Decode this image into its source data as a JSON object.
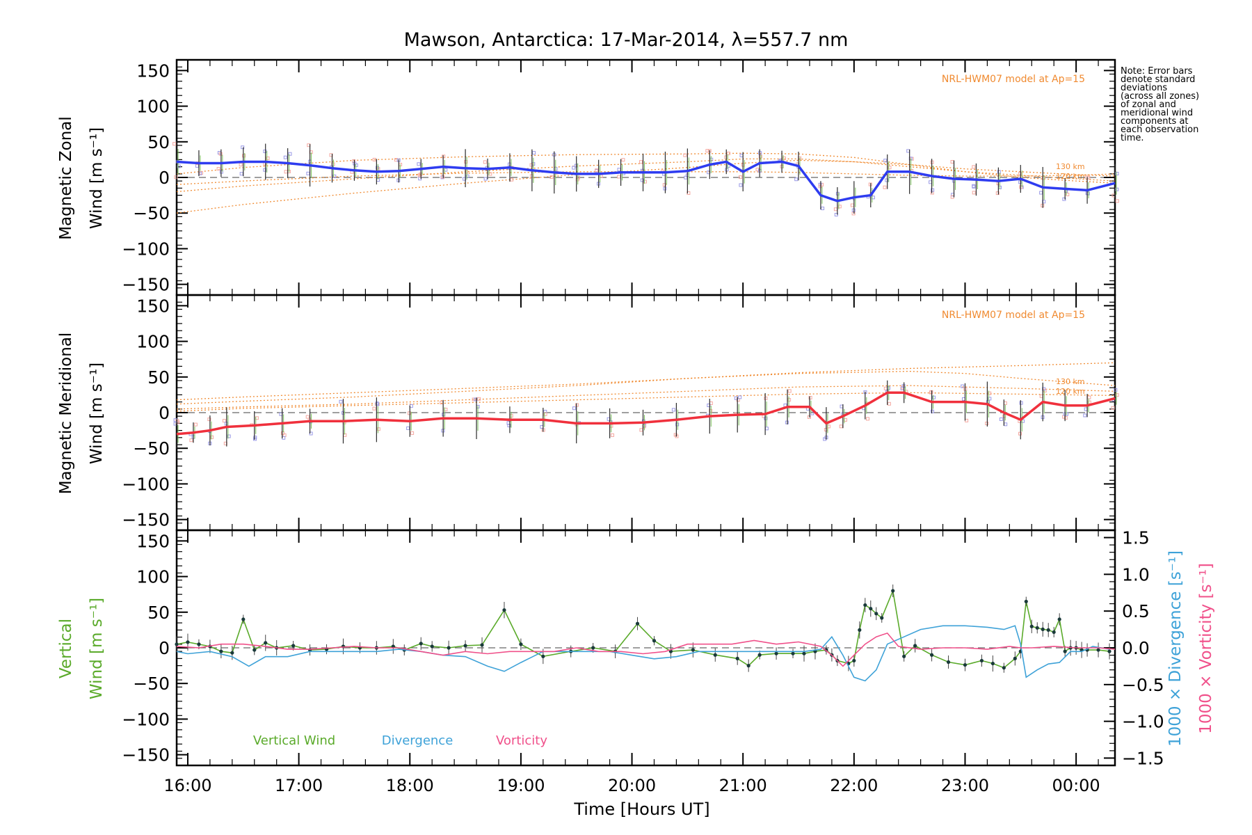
{
  "figure": {
    "title": "Mawson, Antarctica: 17-Mar-2014, λ=557.7 nm",
    "xlabel": "Time [Hours UT]",
    "note": [
      "Note: Error bars",
      "denote standard",
      "deviations",
      "(across all zones)",
      "of zonal and",
      "meridional wind",
      "components at",
      "each observation",
      "time."
    ],
    "model_label": "NRL-HWM07 model at Ap=15",
    "alt_labels": [
      "130 km",
      "120 km"
    ],
    "colors": {
      "zonal": "#2e3cf0",
      "meridional": "#f0303c",
      "vertical": "#5aaa2a",
      "divergence": "#3ea2d8",
      "vorticity": "#f0508a",
      "model": "#f08a30",
      "samples": "#9a9ae6"
    }
  },
  "chart_data": [
    {
      "type": "line",
      "panel": "zonal",
      "ylabel_lines": [
        "Magnetic Zonal",
        "Wind [m s⁻¹]"
      ],
      "ylim": [
        -165,
        165
      ],
      "yticks": [
        -150,
        -100,
        -50,
        0,
        50,
        100,
        150
      ],
      "xlim": [
        15.9,
        24.35
      ],
      "xticks": [
        16,
        17,
        18,
        19,
        20,
        21,
        22,
        23,
        24
      ],
      "xticklabels": [
        "16:00",
        "17:00",
        "18:00",
        "19:00",
        "20:00",
        "21:00",
        "22:00",
        "23:00",
        "00:00"
      ],
      "x": [
        15.9,
        16.1,
        16.3,
        16.5,
        16.7,
        16.9,
        17.1,
        17.3,
        17.5,
        17.7,
        17.9,
        18.1,
        18.3,
        18.5,
        18.7,
        18.9,
        19.1,
        19.3,
        19.5,
        19.7,
        19.9,
        20.1,
        20.3,
        20.5,
        20.7,
        20.85,
        21.0,
        21.15,
        21.35,
        21.5,
        21.7,
        21.85,
        22.0,
        22.15,
        22.3,
        22.5,
        22.7,
        22.9,
        23.1,
        23.3,
        23.5,
        23.7,
        23.9,
        24.1,
        24.35
      ],
      "series": [
        {
          "name": "zonal",
          "values": [
            22,
            20,
            20,
            22,
            22,
            20,
            17,
            13,
            10,
            8,
            9,
            12,
            15,
            13,
            12,
            14,
            10,
            7,
            5,
            5,
            7,
            7,
            7,
            9,
            18,
            22,
            8,
            20,
            22,
            16,
            -25,
            -33,
            -28,
            -25,
            8,
            8,
            2,
            -2,
            -3,
            -5,
            -2,
            -14,
            -16,
            -18,
            -8
          ]
        }
      ],
      "model_lines": [
        {
          "x": [
            15.9,
            16.5,
            17.5,
            18.5,
            19.5,
            20.5,
            21.0,
            21.5,
            22.0,
            22.5,
            23.0,
            23.5,
            24.0,
            24.35
          ],
          "values": [
            5,
            14,
            24,
            29,
            32,
            33,
            34,
            33,
            28,
            18,
            8,
            0,
            -5,
            -8
          ]
        },
        {
          "x": [
            15.9,
            16.5,
            17.5,
            18.5,
            19.5,
            20.5,
            21.0,
            21.5,
            22.0,
            22.5,
            23.0,
            23.5,
            24.0,
            24.35
          ],
          "values": [
            -20,
            -12,
            -2,
            8,
            16,
            22,
            26,
            26,
            22,
            15,
            8,
            3,
            -2,
            -5
          ]
        },
        {
          "x": [
            15.9,
            16.5,
            17.5,
            18.5,
            19.5,
            20.5,
            21.0,
            21.5,
            22.0,
            22.5,
            23.0,
            23.5,
            24.0,
            24.35
          ],
          "values": [
            -50,
            -38,
            -22,
            -8,
            4,
            14,
            20,
            24,
            22,
            18,
            12,
            8,
            4,
            2
          ]
        },
        {
          "x": [
            15.9,
            16.5,
            17.5,
            18.5,
            19.5,
            20.5,
            21.0,
            21.5,
            22.0,
            22.5,
            23.0,
            23.5,
            24.0,
            24.35
          ],
          "values": [
            -10,
            -5,
            2,
            6,
            8,
            8,
            8,
            7,
            5,
            3,
            2,
            2,
            3,
            5
          ]
        }
      ]
    },
    {
      "type": "line",
      "panel": "meridional",
      "ylabel_lines": [
        "Magnetic Meridional",
        "Wind [m s⁻¹]"
      ],
      "ylim": [
        -165,
        165
      ],
      "yticks": [
        -150,
        -100,
        -50,
        0,
        50,
        100,
        150
      ],
      "xlim": [
        15.9,
        24.35
      ],
      "xticks": [
        16,
        17,
        18,
        19,
        20,
        21,
        22,
        23,
        24
      ],
      "xticklabels": [
        "16:00",
        "17:00",
        "18:00",
        "19:00",
        "20:00",
        "21:00",
        "22:00",
        "23:00",
        "00:00"
      ],
      "x": [
        15.9,
        16.05,
        16.2,
        16.35,
        16.6,
        16.85,
        17.1,
        17.4,
        17.7,
        18.0,
        18.3,
        18.6,
        18.9,
        19.2,
        19.5,
        19.8,
        20.1,
        20.4,
        20.7,
        20.95,
        21.2,
        21.4,
        21.6,
        21.75,
        21.9,
        22.1,
        22.3,
        22.45,
        22.7,
        23.0,
        23.2,
        23.35,
        23.5,
        23.7,
        23.9,
        24.1,
        24.35
      ],
      "series": [
        {
          "name": "meridional",
          "values": [
            -30,
            -28,
            -25,
            -20,
            -18,
            -15,
            -12,
            -12,
            -10,
            -12,
            -8,
            -8,
            -10,
            -10,
            -15,
            -15,
            -14,
            -10,
            -5,
            -3,
            -2,
            8,
            8,
            -15,
            -5,
            10,
            28,
            28,
            15,
            15,
            12,
            0,
            -10,
            15,
            10,
            10,
            20
          ]
        }
      ],
      "model_lines": [
        {
          "x": [
            15.9,
            16.5,
            17.5,
            18.5,
            19.5,
            20.5,
            21.5,
            22.5,
            23.5,
            24.35
          ],
          "values": [
            18,
            22,
            28,
            34,
            40,
            48,
            56,
            62,
            66,
            70
          ]
        },
        {
          "x": [
            15.9,
            16.5,
            17.5,
            18.5,
            19.5,
            20.5,
            21.5,
            22.5,
            23.0,
            23.5,
            24.35
          ],
          "values": [
            12,
            16,
            22,
            30,
            38,
            48,
            55,
            58,
            55,
            48,
            38
          ]
        },
        {
          "x": [
            15.9,
            16.5,
            17.5,
            18.5,
            19.5,
            20.5,
            21.5,
            22.5,
            23.5,
            24.35
          ],
          "values": [
            5,
            8,
            12,
            18,
            24,
            30,
            36,
            38,
            34,
            30
          ]
        },
        {
          "x": [
            15.9,
            16.5,
            17.5,
            18.5,
            19.5,
            20.5,
            21.5,
            22.5,
            23.5,
            24.35
          ],
          "values": [
            2,
            6,
            10,
            14,
            18,
            22,
            26,
            28,
            26,
            24
          ]
        }
      ]
    },
    {
      "type": "line",
      "panel": "vertical",
      "ylabel_lines": [
        "Vertical",
        "Wind [m s⁻¹]"
      ],
      "y2label_lines": [
        "1000 × Divergence [s⁻¹]",
        "1000 × Vorticity [s⁻¹]"
      ],
      "ylim": [
        -165,
        165
      ],
      "yticks": [
        -150,
        -100,
        -50,
        0,
        50,
        100,
        150
      ],
      "y2lim": [
        -1.6,
        1.6
      ],
      "y2ticks": [
        -1.5,
        -1.0,
        -0.5,
        0.0,
        0.5,
        1.0,
        1.5
      ],
      "y2ticklabels": [
        "−1.5",
        "−1.0",
        "−0.5",
        "0.0",
        "0.5",
        "1.0",
        "1.5"
      ],
      "xlim": [
        15.9,
        24.35
      ],
      "xticks": [
        16,
        17,
        18,
        19,
        20,
        21,
        22,
        23,
        24
      ],
      "xticklabels": [
        "16:00",
        "17:00",
        "18:00",
        "19:00",
        "20:00",
        "21:00",
        "22:00",
        "23:00",
        "00:00"
      ],
      "legend": [
        "Vertical Wind",
        "Divergence",
        "Vorticity"
      ],
      "series": [
        {
          "name": "Vertical Wind",
          "axis": "left",
          "x": [
            15.9,
            16.0,
            16.1,
            16.2,
            16.3,
            16.4,
            16.5,
            16.6,
            16.7,
            16.8,
            16.95,
            17.1,
            17.25,
            17.4,
            17.55,
            17.7,
            17.85,
            17.95,
            18.1,
            18.2,
            18.35,
            18.5,
            18.65,
            18.85,
            19.0,
            19.2,
            19.45,
            19.65,
            19.85,
            20.05,
            20.2,
            20.35,
            20.55,
            20.75,
            20.95,
            21.05,
            21.15,
            21.3,
            21.45,
            21.55,
            21.65,
            21.75,
            21.8,
            21.85,
            21.95,
            22.0,
            22.05,
            22.1,
            22.15,
            22.2,
            22.25,
            22.35,
            22.45,
            22.55,
            22.7,
            22.85,
            23.0,
            23.15,
            23.25,
            23.35,
            23.45,
            23.5,
            23.55,
            23.6,
            23.65,
            23.7,
            23.75,
            23.8,
            23.85,
            23.9,
            23.95,
            24.0,
            24.05,
            24.1,
            24.2,
            24.3
          ],
          "values": [
            5,
            8,
            5,
            2,
            -5,
            -7,
            40,
            -3,
            7,
            0,
            3,
            -3,
            -2,
            2,
            0,
            0,
            2,
            -3,
            6,
            2,
            0,
            3,
            4,
            53,
            5,
            -12,
            -5,
            0,
            -5,
            34,
            10,
            -5,
            -3,
            -10,
            -15,
            -25,
            -10,
            -8,
            -8,
            -8,
            -5,
            -3,
            -10,
            -18,
            -22,
            -18,
            25,
            60,
            55,
            48,
            42,
            80,
            -12,
            3,
            -10,
            -20,
            -24,
            -18,
            -22,
            -28,
            -15,
            -5,
            65,
            30,
            28,
            26,
            25,
            22,
            40,
            -5,
            0,
            0,
            -3,
            -3,
            -3,
            -5
          ]
        },
        {
          "name": "Divergence",
          "axis": "right",
          "x": [
            15.9,
            16.0,
            16.2,
            16.4,
            16.55,
            16.7,
            16.9,
            17.1,
            17.3,
            17.5,
            17.7,
            17.9,
            18.1,
            18.3,
            18.5,
            18.7,
            18.85,
            19.0,
            19.2,
            19.4,
            19.6,
            19.8,
            20.0,
            20.2,
            20.4,
            20.6,
            20.8,
            21.0,
            21.2,
            21.4,
            21.55,
            21.7,
            21.8,
            21.9,
            22.0,
            22.1,
            22.2,
            22.3,
            22.45,
            22.6,
            22.8,
            23.0,
            23.2,
            23.35,
            23.45,
            23.5,
            23.55,
            23.65,
            23.75,
            23.85,
            23.95,
            24.05,
            24.15,
            24.3
          ],
          "values": [
            -0.05,
            -0.08,
            -0.05,
            -0.12,
            -0.25,
            -0.12,
            -0.12,
            -0.05,
            -0.05,
            -0.05,
            -0.05,
            -0.02,
            -0.05,
            -0.1,
            -0.12,
            -0.25,
            -0.32,
            -0.2,
            -0.05,
            -0.05,
            -0.05,
            -0.05,
            -0.1,
            -0.15,
            -0.12,
            -0.05,
            -0.05,
            -0.05,
            -0.05,
            -0.05,
            -0.05,
            -0.02,
            0.15,
            -0.1,
            -0.4,
            -0.45,
            -0.3,
            0.05,
            0.15,
            0.25,
            0.3,
            0.3,
            0.28,
            0.25,
            0.3,
            0.05,
            -0.4,
            -0.3,
            -0.22,
            -0.2,
            -0.05,
            -0.05,
            0.02,
            -0.02
          ]
        },
        {
          "name": "Vorticity",
          "axis": "right",
          "x": [
            15.9,
            16.1,
            16.3,
            16.5,
            16.7,
            16.9,
            17.1,
            17.3,
            17.5,
            17.7,
            17.9,
            18.1,
            18.3,
            18.5,
            18.7,
            18.9,
            19.1,
            19.3,
            19.5,
            19.7,
            19.9,
            20.1,
            20.3,
            20.5,
            20.7,
            20.9,
            21.1,
            21.3,
            21.5,
            21.7,
            21.8,
            21.9,
            22.0,
            22.1,
            22.2,
            22.3,
            22.4,
            22.6,
            22.8,
            23.0,
            23.2,
            23.4,
            23.5,
            23.6,
            23.8,
            24.0,
            24.2,
            24.35
          ],
          "values": [
            0.02,
            0.0,
            0.05,
            0.05,
            0.02,
            -0.02,
            -0.02,
            0.0,
            0.02,
            0.0,
            0.0,
            -0.05,
            -0.1,
            -0.05,
            -0.08,
            -0.05,
            -0.05,
            -0.05,
            0.0,
            -0.05,
            -0.05,
            -0.08,
            -0.05,
            0.05,
            0.05,
            0.05,
            0.1,
            0.05,
            0.08,
            0.02,
            -0.1,
            -0.25,
            -0.1,
            0.05,
            0.15,
            0.2,
            0.02,
            -0.02,
            0.0,
            0.0,
            -0.02,
            0.02,
            0.0,
            0.0,
            0.02,
            0.0,
            0.0,
            -0.02
          ]
        }
      ]
    }
  ]
}
